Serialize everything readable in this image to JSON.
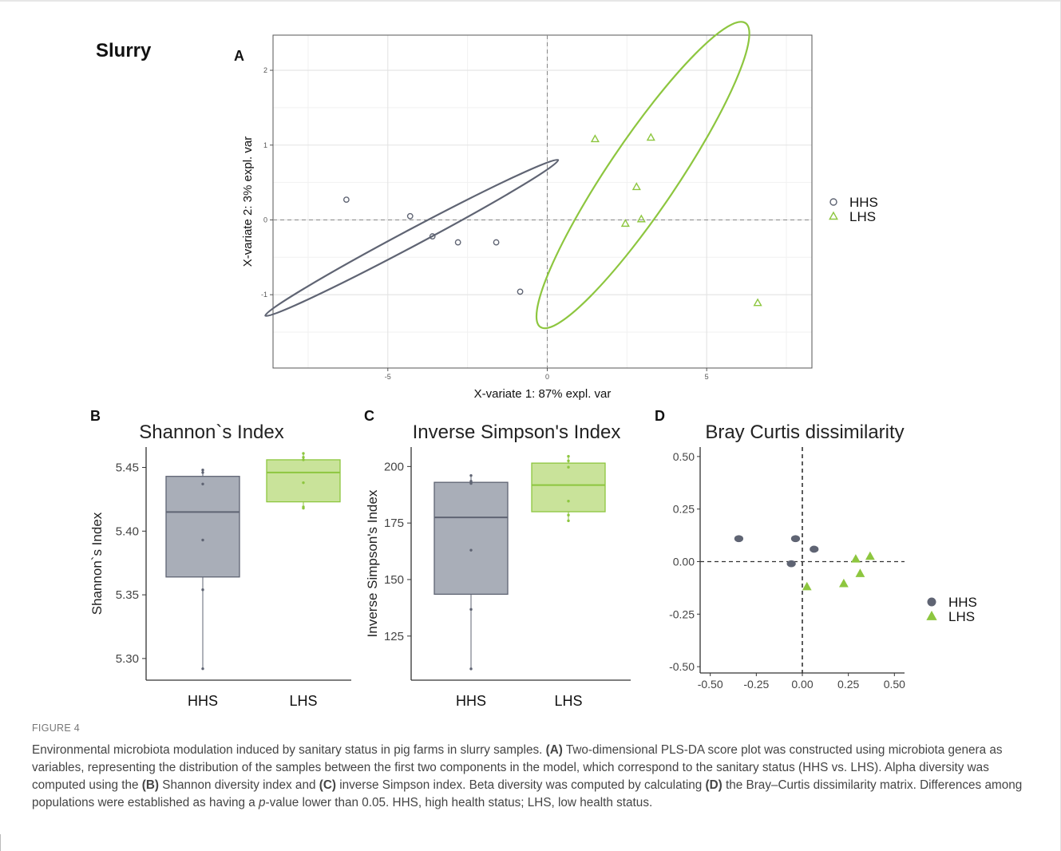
{
  "figure": {
    "title": "Slurry",
    "label": "FIGURE 4",
    "caption_parts": [
      "Environmental microbiota modulation induced by sanitary status in pig farms in slurry samples. ",
      "(A)",
      " Two-dimensional PLS-DA score plot was constructed using microbiota genera as variables, representing the distribution of the samples between the first two components in the model, which correspond to the sanitary status (HHS vs. LHS). Alpha diversity was computed using the ",
      "(B)",
      " Shannon diversity index and ",
      "(C)",
      " inverse Simpson index. Beta diversity was computed by calculating ",
      "(D)",
      " the Bray–Curtis dissimilarity matrix. Differences among populations were established as having a ",
      "p",
      "-value lower than 0.05. HHS, high health status; LHS, low health status."
    ]
  },
  "colors": {
    "HHS": "#5f6473",
    "LHS": "#8dc63f",
    "HHS_box": "#a9aeb8",
    "LHS_box": "#c9e39a"
  },
  "chart_data": [
    {
      "panel": "A",
      "type": "scatter",
      "xlabel": "X-variate 1: 87% expl. var",
      "ylabel": "X-variate 2: 3% expl. var",
      "xlim": [
        -8.6,
        8.3
      ],
      "ylim": [
        -1.98,
        2.47
      ],
      "xticks": [
        -5,
        0,
        5
      ],
      "yticks": [
        -1,
        0,
        1,
        2
      ],
      "grid": true,
      "legend_position": "right",
      "series": [
        {
          "name": "HHS",
          "marker": "circle",
          "points": [
            [
              -6.3,
              0.27
            ],
            [
              -4.3,
              0.05
            ],
            [
              -3.6,
              -0.22
            ],
            [
              -2.8,
              -0.3
            ],
            [
              -1.6,
              -0.3
            ],
            [
              -0.85,
              -0.96
            ]
          ],
          "ellipse": {
            "cx": -4.25,
            "cy": -0.24,
            "rx": 5.2,
            "ry": 0.26,
            "angle": -28
          }
        },
        {
          "name": "LHS",
          "marker": "triangle",
          "points": [
            [
              1.5,
              1.08
            ],
            [
              3.25,
              1.1
            ],
            [
              2.8,
              0.44
            ],
            [
              2.45,
              -0.05
            ],
            [
              2.95,
              0.01
            ],
            [
              6.6,
              -1.11
            ]
          ],
          "ellipse": {
            "cx": 3.0,
            "cy": 0.6,
            "rx": 5.75,
            "ry": 1.08,
            "angle": -56
          }
        }
      ]
    },
    {
      "panel": "B",
      "type": "box",
      "title": "Shannon`s Index",
      "ylabel": "Shannon`s Index",
      "categories": [
        "HHS",
        "LHS"
      ],
      "ylim": [
        5.283,
        5.466
      ],
      "yticks": [
        5.3,
        5.35,
        5.4,
        5.45
      ],
      "ytick_labels": [
        "5.30",
        "5.35",
        "5.40",
        "5.45"
      ],
      "boxes": [
        {
          "name": "HHS",
          "min": 5.292,
          "q1": 5.364,
          "median": 5.415,
          "q3": 5.443,
          "max": 5.448,
          "points": [
            5.292,
            5.354,
            5.393,
            5.437,
            5.446,
            5.448
          ]
        },
        {
          "name": "LHS",
          "min": 5.418,
          "q1": 5.423,
          "median": 5.446,
          "q3": 5.456,
          "max": 5.461,
          "points": [
            5.418,
            5.419,
            5.438,
            5.456,
            5.458,
            5.461
          ]
        }
      ]
    },
    {
      "panel": "C",
      "type": "box",
      "title": "Inverse Simpson's Index",
      "ylabel": "Inverse Simpson's Index",
      "categories": [
        "HHS",
        "LHS"
      ],
      "ylim": [
        105.5,
        208.6
      ],
      "yticks": [
        125,
        150,
        175,
        200
      ],
      "boxes": [
        {
          "name": "HHS",
          "min": 110.5,
          "q1": 143.5,
          "median": 177.5,
          "q3": 193.0,
          "max": 196.0,
          "points": [
            110.5,
            136.8,
            163.0,
            192.5,
            193.5,
            196.0
          ]
        },
        {
          "name": "LHS",
          "min": 176.0,
          "q1": 180.0,
          "median": 191.8,
          "q3": 201.5,
          "max": 204.5,
          "points": [
            176.0,
            178.5,
            184.7,
            199.7,
            202.5,
            204.5
          ]
        }
      ]
    },
    {
      "panel": "D",
      "type": "scatter",
      "title": "Bray Curtis dissimilarity",
      "xlim": [
        -0.555,
        0.555
      ],
      "ylim": [
        -0.53,
        0.545
      ],
      "xticks": [
        -0.5,
        -0.25,
        0,
        0.25,
        0.5
      ],
      "xtick_labels": [
        "-0.50",
        "-0.25",
        "0.00",
        "0.25",
        "0.50"
      ],
      "yticks": [
        -0.5,
        -0.25,
        0,
        0.25,
        0.5
      ],
      "ytick_labels": [
        "-0.50",
        "-0.25",
        "0.00",
        "0.25",
        "0.50"
      ],
      "legend_position": "right",
      "series": [
        {
          "name": "HHS",
          "marker": "filled-circle",
          "points": [
            [
              -0.345,
              0.109
            ],
            [
              -0.037,
              0.109
            ],
            [
              0.064,
              0.059
            ],
            [
              -0.06,
              -0.01
            ]
          ]
        },
        {
          "name": "LHS",
          "marker": "filled-triangle",
          "points": [
            [
              0.025,
              -0.12
            ],
            [
              0.225,
              -0.105
            ],
            [
              0.29,
              0.012
            ],
            [
              0.368,
              0.025
            ],
            [
              0.314,
              -0.057
            ]
          ]
        }
      ]
    }
  ]
}
